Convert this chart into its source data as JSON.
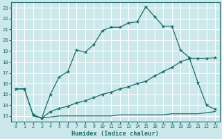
{
  "xlabel": "Humidex (Indice chaleur)",
  "xlim": [
    -0.5,
    23.5
  ],
  "ylim": [
    12.5,
    23.5
  ],
  "xticks": [
    0,
    1,
    2,
    3,
    4,
    5,
    6,
    7,
    8,
    9,
    10,
    11,
    12,
    13,
    14,
    15,
    16,
    17,
    18,
    19,
    20,
    21,
    22,
    23
  ],
  "yticks": [
    13,
    14,
    15,
    16,
    17,
    18,
    19,
    20,
    21,
    22,
    23
  ],
  "bg_color": "#cce8ea",
  "grid_color": "#ffffff",
  "line_color": "#1a6b6b",
  "line1_x": [
    0,
    1,
    2,
    3,
    4,
    5,
    6,
    7,
    8,
    9,
    10,
    11,
    12,
    13,
    14,
    15,
    16,
    17,
    18,
    19,
    20,
    21,
    22,
    23
  ],
  "line1_y": [
    15.5,
    15.5,
    13.1,
    12.8,
    15.0,
    16.6,
    17.1,
    19.1,
    18.9,
    19.6,
    20.9,
    21.2,
    21.2,
    21.6,
    21.7,
    23.1,
    22.2,
    21.3,
    21.3,
    19.1,
    18.4,
    16.1,
    14.0,
    13.6
  ],
  "line2_x": [
    0,
    1,
    2,
    3,
    4,
    5,
    6,
    7,
    8,
    9,
    10,
    11,
    12,
    13,
    14,
    15,
    16,
    17,
    18,
    19,
    20,
    21,
    22,
    23
  ],
  "line2_y": [
    15.5,
    15.5,
    13.1,
    12.8,
    13.4,
    13.7,
    13.9,
    14.2,
    14.4,
    14.7,
    15.0,
    15.2,
    15.5,
    15.7,
    16.0,
    16.2,
    16.7,
    17.1,
    17.5,
    18.0,
    18.3,
    18.3,
    18.3,
    18.4
  ],
  "line3_x": [
    2,
    3,
    4,
    5,
    6,
    7,
    8,
    9,
    10,
    11,
    12,
    13,
    14,
    15,
    16,
    17,
    18,
    19,
    20,
    21,
    22,
    23
  ],
  "line3_y": [
    13.0,
    12.8,
    12.9,
    13.0,
    13.0,
    13.0,
    13.0,
    13.0,
    13.0,
    13.0,
    13.1,
    13.1,
    13.1,
    13.1,
    13.1,
    13.1,
    13.2,
    13.2,
    13.2,
    13.2,
    13.3,
    13.4
  ]
}
